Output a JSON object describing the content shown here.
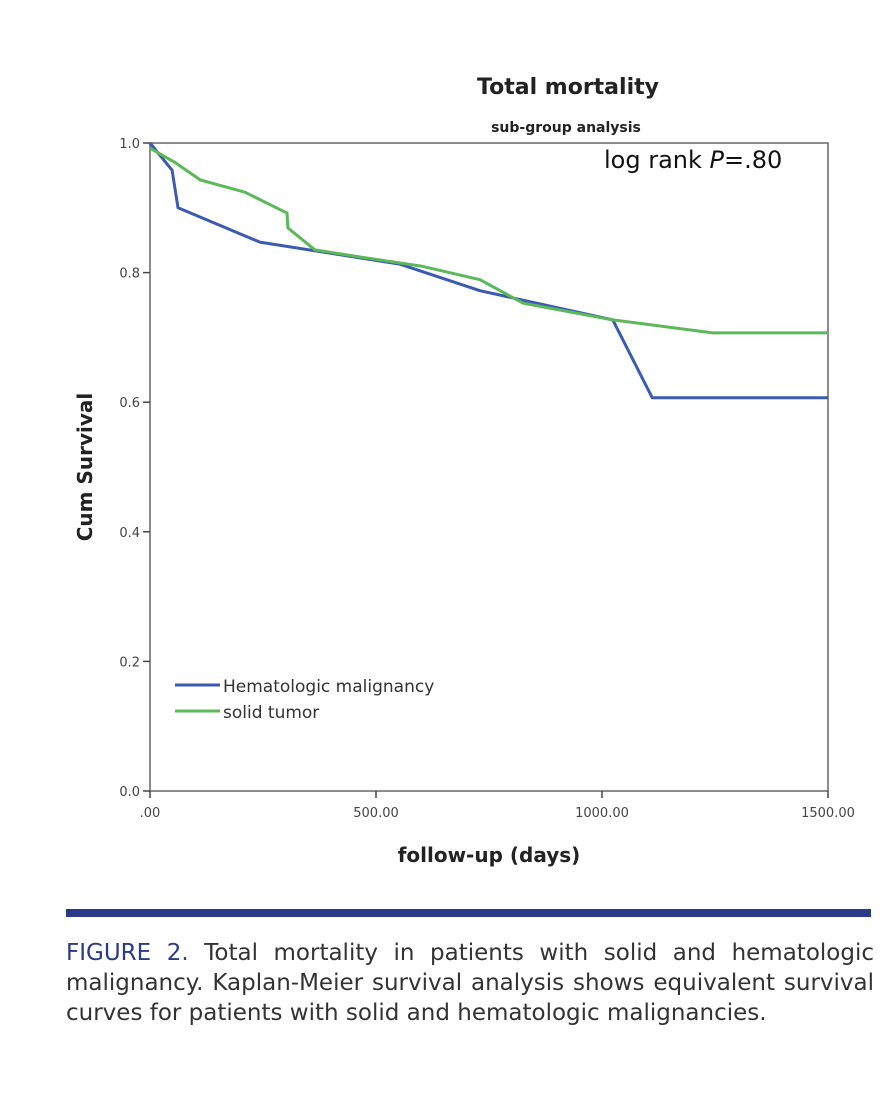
{
  "chart_data": {
    "type": "line",
    "title": "Total mortality",
    "subtitle": "sub-group analysis",
    "xlabel": "follow-up (days)",
    "ylabel": "Cum Survival",
    "xlim": [
      0,
      1500
    ],
    "ylim": [
      0,
      1.0
    ],
    "xticks": [
      ".00",
      "500.00",
      "1000.00",
      "1500.00"
    ],
    "yticks": [
      "0.0",
      "0.2",
      "0.4",
      "0.6",
      "0.8",
      "1.0"
    ],
    "grid": false,
    "legend_position": "bottom-left",
    "annotation": {
      "prefix": "log rank ",
      "italic": "P",
      "suffix": "=.80"
    },
    "series": [
      {
        "name": "Hematologic malignancy",
        "color": "#3a5bb0",
        "x": [
          0,
          49,
          62,
          243,
          553,
          730,
          1024,
          1111,
          1500
        ],
        "y": [
          1.0,
          0.958,
          0.9,
          0.847,
          0.813,
          0.772,
          0.727,
          0.607,
          0.607
        ]
      },
      {
        "name": "solid tumor",
        "color": "#5cb85a",
        "x": [
          0,
          55,
          111,
          210,
          288,
          303,
          305,
          365,
          465,
          600,
          730,
          825,
          1024,
          1245,
          1500
        ],
        "y": [
          0.992,
          0.97,
          0.943,
          0.924,
          0.897,
          0.892,
          0.869,
          0.835,
          0.824,
          0.81,
          0.789,
          0.753,
          0.727,
          0.707,
          0.707
        ]
      }
    ]
  },
  "caption": {
    "label": "FIGURE 2.",
    "text": " Total mortality in patients with solid and hematologic malignancy. Kaplan-Meier survival analysis shows equivalent survival curves for patients with solid and hematologic malignancies."
  }
}
